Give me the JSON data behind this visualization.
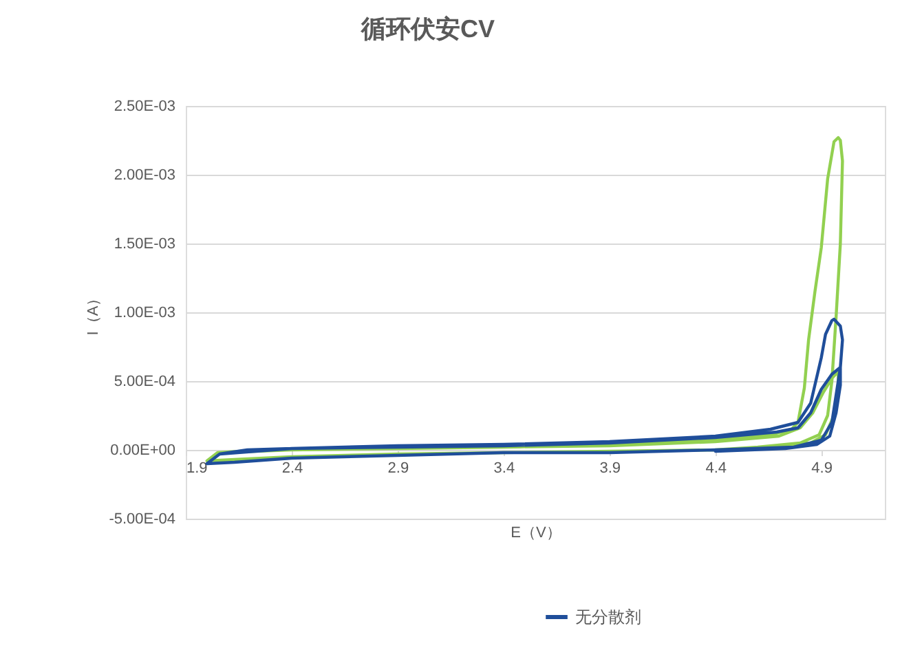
{
  "chart_data": {
    "type": "line",
    "title": "循环伏安CV",
    "xlabel": "E（V）",
    "ylabel": "I（A）",
    "xlim": [
      1.9,
      5.2
    ],
    "xticks": [
      1.9,
      2.4,
      2.9,
      3.4,
      3.9,
      4.4,
      4.9
    ],
    "ylim": [
      -0.0005,
      0.0025
    ],
    "yticks": [
      {
        "value": -0.0005,
        "label": "-5.00E-04"
      },
      {
        "value": 0,
        "label": "0.00E+00"
      },
      {
        "value": 0.0005,
        "label": "5.00E-04"
      },
      {
        "value": 0.001,
        "label": "1.00E-03"
      },
      {
        "value": 0.0015,
        "label": "1.50E-03"
      },
      {
        "value": 0.002,
        "label": "2.00E-03"
      },
      {
        "value": 0.0025,
        "label": "2.50E-03"
      }
    ],
    "grid": "y",
    "legend": "bottom",
    "series": [
      {
        "color": "#92d050",
        "x": [
          2.0,
          2.05,
          2.16,
          2.4,
          2.9,
          3.4,
          3.9,
          4.4,
          4.66,
          4.76,
          4.79,
          4.82,
          4.84,
          4.87,
          4.9,
          4.93,
          4.96,
          4.98,
          4.99,
          5.0,
          4.99,
          4.97,
          4.95,
          4.93,
          4.89,
          4.8,
          4.6,
          4.4,
          3.9,
          3.4,
          2.9,
          2.4,
          2.13,
          2.0,
          2.05,
          2.4,
          2.9,
          3.4,
          3.9,
          4.4,
          4.7,
          4.8,
          4.86,
          4.91,
          4.95,
          4.98,
          4.98,
          4.96,
          4.92,
          4.85,
          4.6,
          4.4
        ],
        "values": [
          -8e-05,
          -2e-05,
          -1e-05,
          0.0,
          1e-05,
          2e-05,
          4e-05,
          7e-05,
          0.00011,
          0.00015,
          0.0002,
          0.00045,
          0.0008,
          0.00115,
          0.00147,
          0.00197,
          0.00224,
          0.00227,
          0.00225,
          0.0021,
          0.0015,
          0.00097,
          0.0005,
          0.00025,
          0.00011,
          5e-05,
          2e-05,
          0.0,
          -1e-05,
          -2e-05,
          -3e-05,
          -5e-05,
          -7e-05,
          -8e-05,
          -2e-05,
          0.0,
          1e-05,
          2e-05,
          3e-05,
          6e-05,
          0.0001,
          0.00016,
          0.00027,
          0.00042,
          0.00052,
          0.00057,
          0.00045,
          0.00025,
          0.00011,
          5e-05,
          2e-05,
          0.0
        ]
      },
      {
        "name": "无分散剂",
        "color": "#1f4e9a",
        "x": [
          2.0,
          2.06,
          2.19,
          2.4,
          2.9,
          3.4,
          3.9,
          4.4,
          4.66,
          4.79,
          4.85,
          4.9,
          4.92,
          4.95,
          4.96,
          4.99,
          5.0,
          4.99,
          4.97,
          4.95,
          4.9,
          4.77,
          4.4,
          3.9,
          3.4,
          2.9,
          2.4,
          2.13,
          2.0,
          2.06,
          2.4,
          2.9,
          3.4,
          3.9,
          4.4,
          4.69,
          4.79,
          4.85,
          4.9,
          4.95,
          4.99,
          4.99,
          4.97,
          4.94,
          4.88,
          4.73,
          4.4
        ],
        "values": [
          -0.0001,
          -3e-05,
          0.0,
          1e-05,
          3e-05,
          4e-05,
          6e-05,
          0.0001,
          0.00015,
          0.0002,
          0.00034,
          0.00067,
          0.00084,
          0.00094,
          0.00095,
          0.0009,
          0.0008,
          0.0006,
          0.0004,
          0.0002,
          7e-05,
          2e-05,
          0.0,
          -2e-05,
          -2e-05,
          -4e-05,
          -6e-05,
          -9e-05,
          -0.0001,
          -3e-05,
          1e-05,
          2e-05,
          3e-05,
          5e-05,
          9e-05,
          0.00013,
          0.00016,
          0.00027,
          0.00044,
          0.00055,
          0.0006,
          0.00047,
          0.00027,
          0.0001,
          4e-05,
          1e-05,
          -1e-05
        ]
      }
    ]
  }
}
